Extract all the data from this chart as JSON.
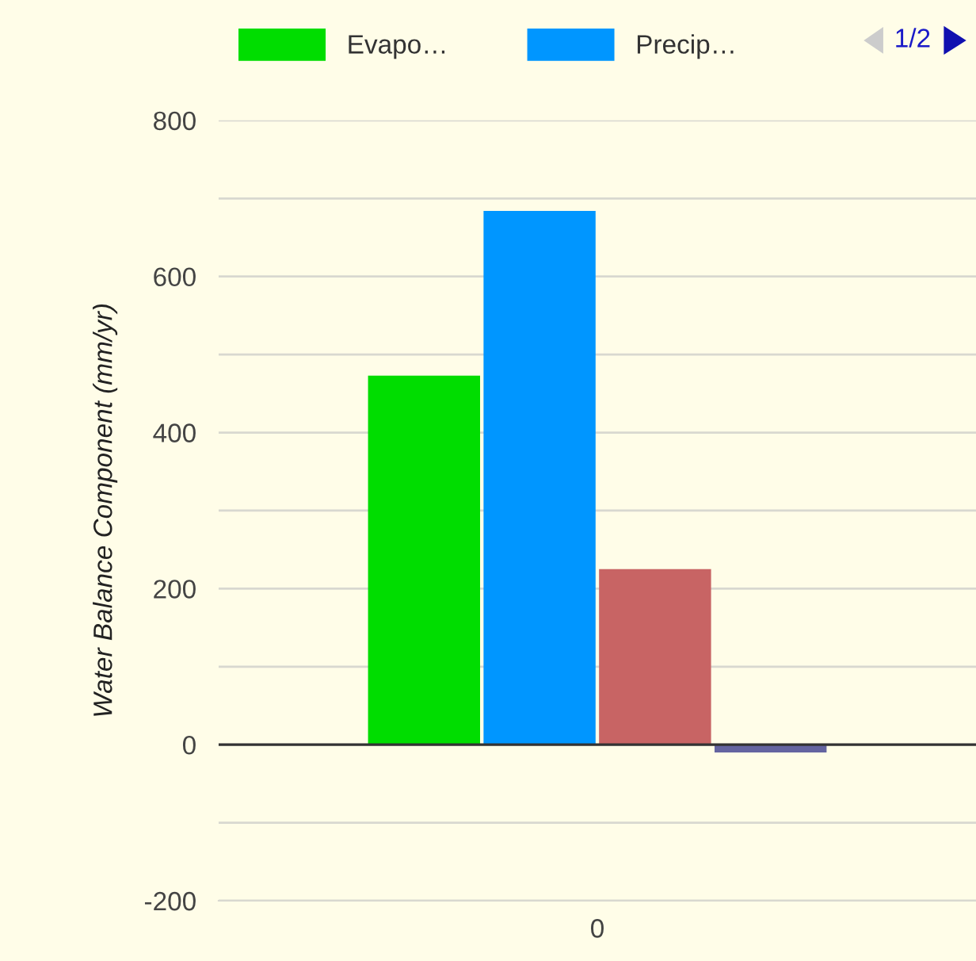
{
  "chart_data": {
    "type": "bar",
    "ylabel": "Water Balance Component (mm/yr)",
    "categories": [
      "0"
    ],
    "series": [
      {
        "name": "Evapo…",
        "color": "#00dd00",
        "values": [
          473
        ]
      },
      {
        "name": "Precip…",
        "color": "#0096ff",
        "values": [
          684
        ]
      },
      {
        "color": "#c86464",
        "values": [
          225
        ]
      },
      {
        "color": "#6464a0",
        "values": [
          -10
        ]
      }
    ],
    "ylim": [
      -200,
      800
    ],
    "ref_lines": [
      {
        "axis": "y",
        "value": 0,
        "color": "#333333"
      }
    ],
    "yticks": [
      -200,
      {
        "value": -100,
        "label": null
      },
      0,
      {
        "value": 100,
        "label": null
      },
      200,
      {
        "value": 300,
        "label": null
      },
      400,
      {
        "value": 500,
        "label": null
      },
      600,
      {
        "value": 700,
        "label": null
      },
      800
    ],
    "grid": "y",
    "legend": "top",
    "annotations": [
      "1/2"
    ]
  }
}
